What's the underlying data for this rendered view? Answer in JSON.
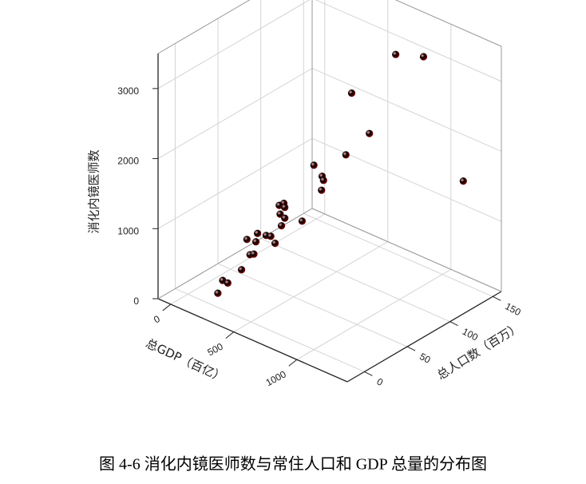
{
  "chart_data": {
    "type": "scatter3d",
    "caption": "图 4-6 消化内镜医师数与常住人口和 GDP 总量的分布图",
    "x_label": "总GDP（百亿）",
    "y_label": "总人口数（百万）",
    "z_label": "消化内镜医师数",
    "xlim": [
      -100,
      1400
    ],
    "ylim": [
      -20,
      160
    ],
    "zlim": [
      0,
      3500
    ],
    "xticks": [
      0,
      500,
      1000
    ],
    "yticks": [
      0,
      50,
      100,
      150
    ],
    "zticks": [
      0,
      1000,
      2000,
      3000
    ],
    "grid": true,
    "color": "#ee0000",
    "x": [
      800,
      1000,
      600,
      700,
      500,
      1200,
      450,
      400,
      350,
      300,
      300,
      250,
      280,
      230,
      260,
      350,
      220,
      200,
      180,
      210,
      150,
      160,
      190,
      120,
      130,
      80,
      80,
      100,
      150
    ],
    "y": [
      125,
      128,
      103,
      109,
      111,
      145,
      81,
      98,
      107,
      112,
      68,
      70,
      72,
      74,
      75,
      82,
      77,
      52,
      65,
      66,
      47,
      56,
      74,
      55,
      58,
      51,
      29,
      32,
      13
    ],
    "z": [
      3160,
      3265,
      2607,
      2067,
      1590,
      1525,
      1617,
      1298,
      1136,
      920,
      1047,
      965,
      945,
      795,
      754,
      733,
      600,
      654,
      516,
      520,
      564,
      474,
      347,
      265,
      261,
      47,
      52,
      10,
      40
    ]
  }
}
